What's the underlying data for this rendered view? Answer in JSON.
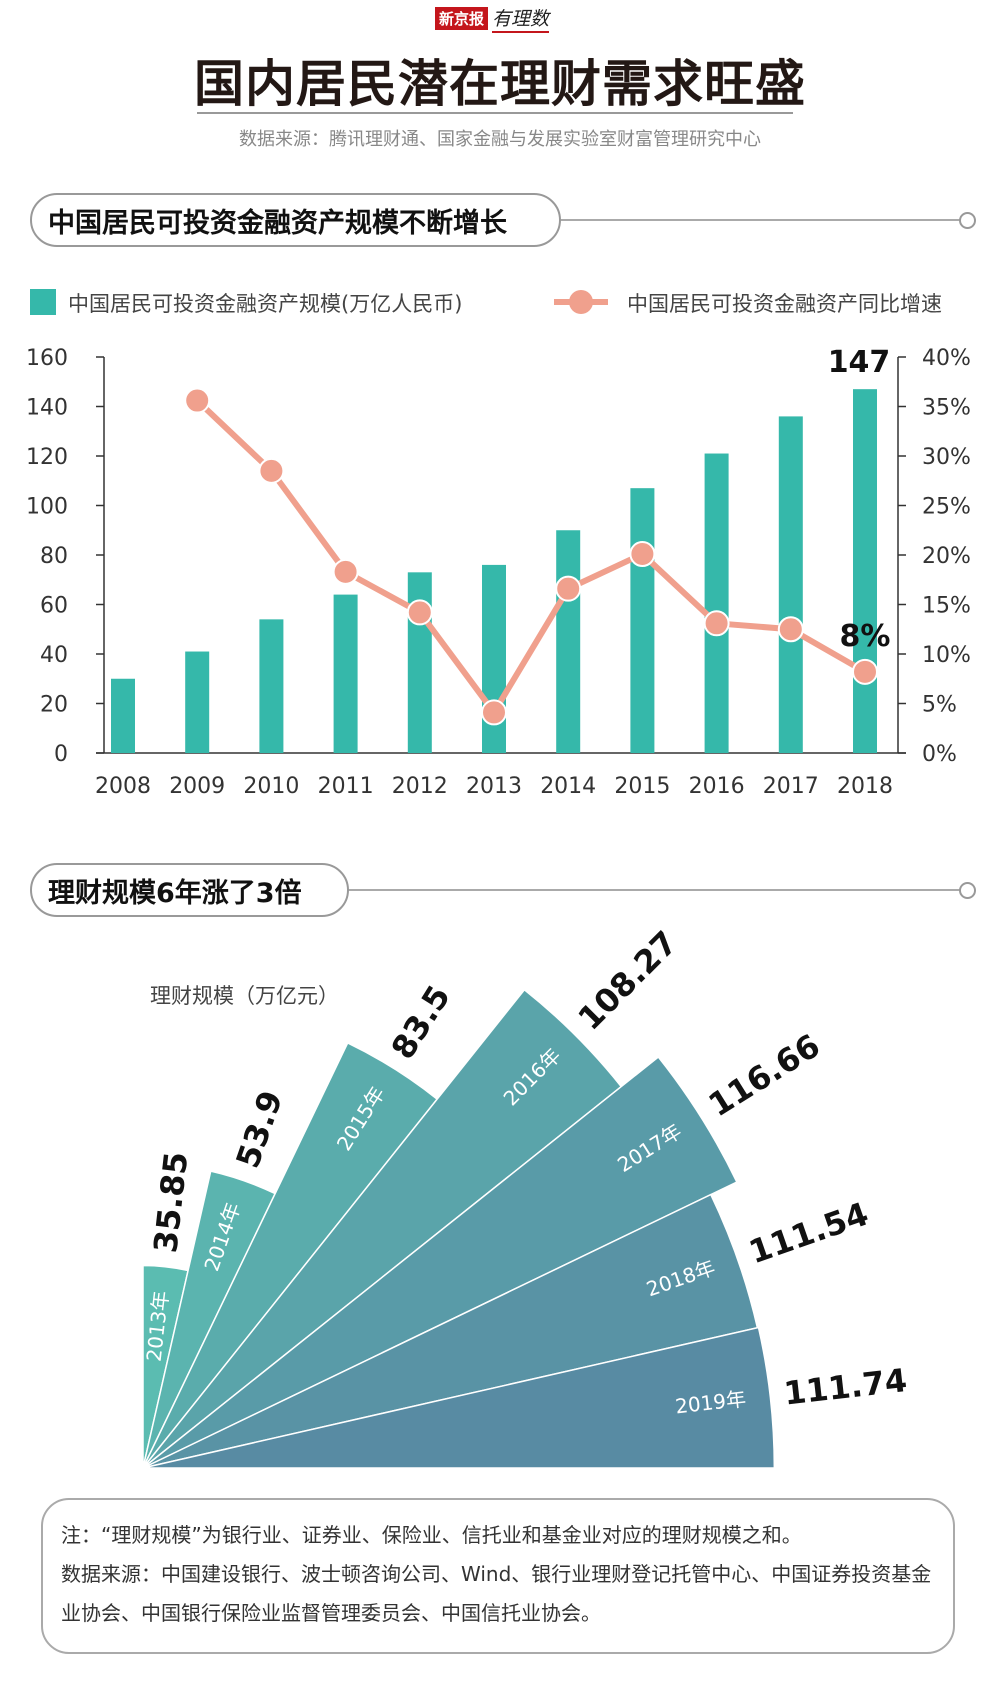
{
  "header": {
    "logo_brand": "新京报",
    "logo_sub": "有理数",
    "title": "国内居民潜在理财需求旺盛",
    "source": "数据来源：腾讯理财通、国家金融与发展实验室财富管理研究中心"
  },
  "section1": {
    "title": "中国居民可投资金融资产规模不断增长"
  },
  "section2": {
    "title": "理财规模6年涨了3倍"
  },
  "colors": {
    "bar": "#35b8aa",
    "line": "#f0a08d",
    "fan_start": "#5bbcb1",
    "fan_end": "#588ba3"
  },
  "chart_data": [
    {
      "type": "bar+line",
      "categories": [
        "2008",
        "2009",
        "2010",
        "2011",
        "2012",
        "2013",
        "2014",
        "2015",
        "2016",
        "2017",
        "2018"
      ],
      "series": [
        {
          "name": "中国居民可投资金融资产规模(万亿人民币)",
          "type": "bar",
          "axis": "left",
          "values": [
            30,
            41,
            54,
            64,
            73,
            76,
            90,
            107,
            121,
            136,
            147
          ]
        },
        {
          "name": "中国居民可投资金融资产同比增速",
          "type": "line",
          "axis": "right",
          "values": [
            null,
            35.6,
            28.5,
            18.3,
            14.2,
            4.1,
            16.6,
            20.1,
            13.1,
            12.5,
            8.2
          ]
        }
      ],
      "annotations": [
        "147",
        "8%"
      ],
      "left_axis": {
        "ylim": [
          0,
          160
        ],
        "ticks": [
          "0",
          "20",
          "40",
          "60",
          "80",
          "100",
          "120",
          "140",
          "160"
        ]
      },
      "right_axis": {
        "ylim": [
          0,
          40
        ],
        "ticks": [
          "0%",
          "5%",
          "10%",
          "15%",
          "20%",
          "25%",
          "30%",
          "35%",
          "40%"
        ]
      },
      "legend": "top",
      "grid": false
    },
    {
      "type": "radial-bar",
      "ylabel": "理财规模（万亿元）",
      "categories": [
        "2013年",
        "2014年",
        "2015年",
        "2016年",
        "2017年",
        "2018年",
        "2019年"
      ],
      "values": [
        35.85,
        53.9,
        83.5,
        108.27,
        116.66,
        111.54,
        111.74
      ],
      "value_labels": [
        "35.85",
        "53.9",
        "83.5",
        "108.27",
        "116.66",
        "111.54",
        "111.74"
      ]
    }
  ],
  "footer": {
    "note": "注：“理财规模”为银行业、证券业、保险业、信托业和基金业对应的理财规模之和。",
    "sources": "数据来源：中国建设银行、波士顿咨询公司、Wind、银行业理财登记托管中心、中国证券投资基金业协会、中国银行保险业监督管理委员会、中国信托业协会。"
  }
}
